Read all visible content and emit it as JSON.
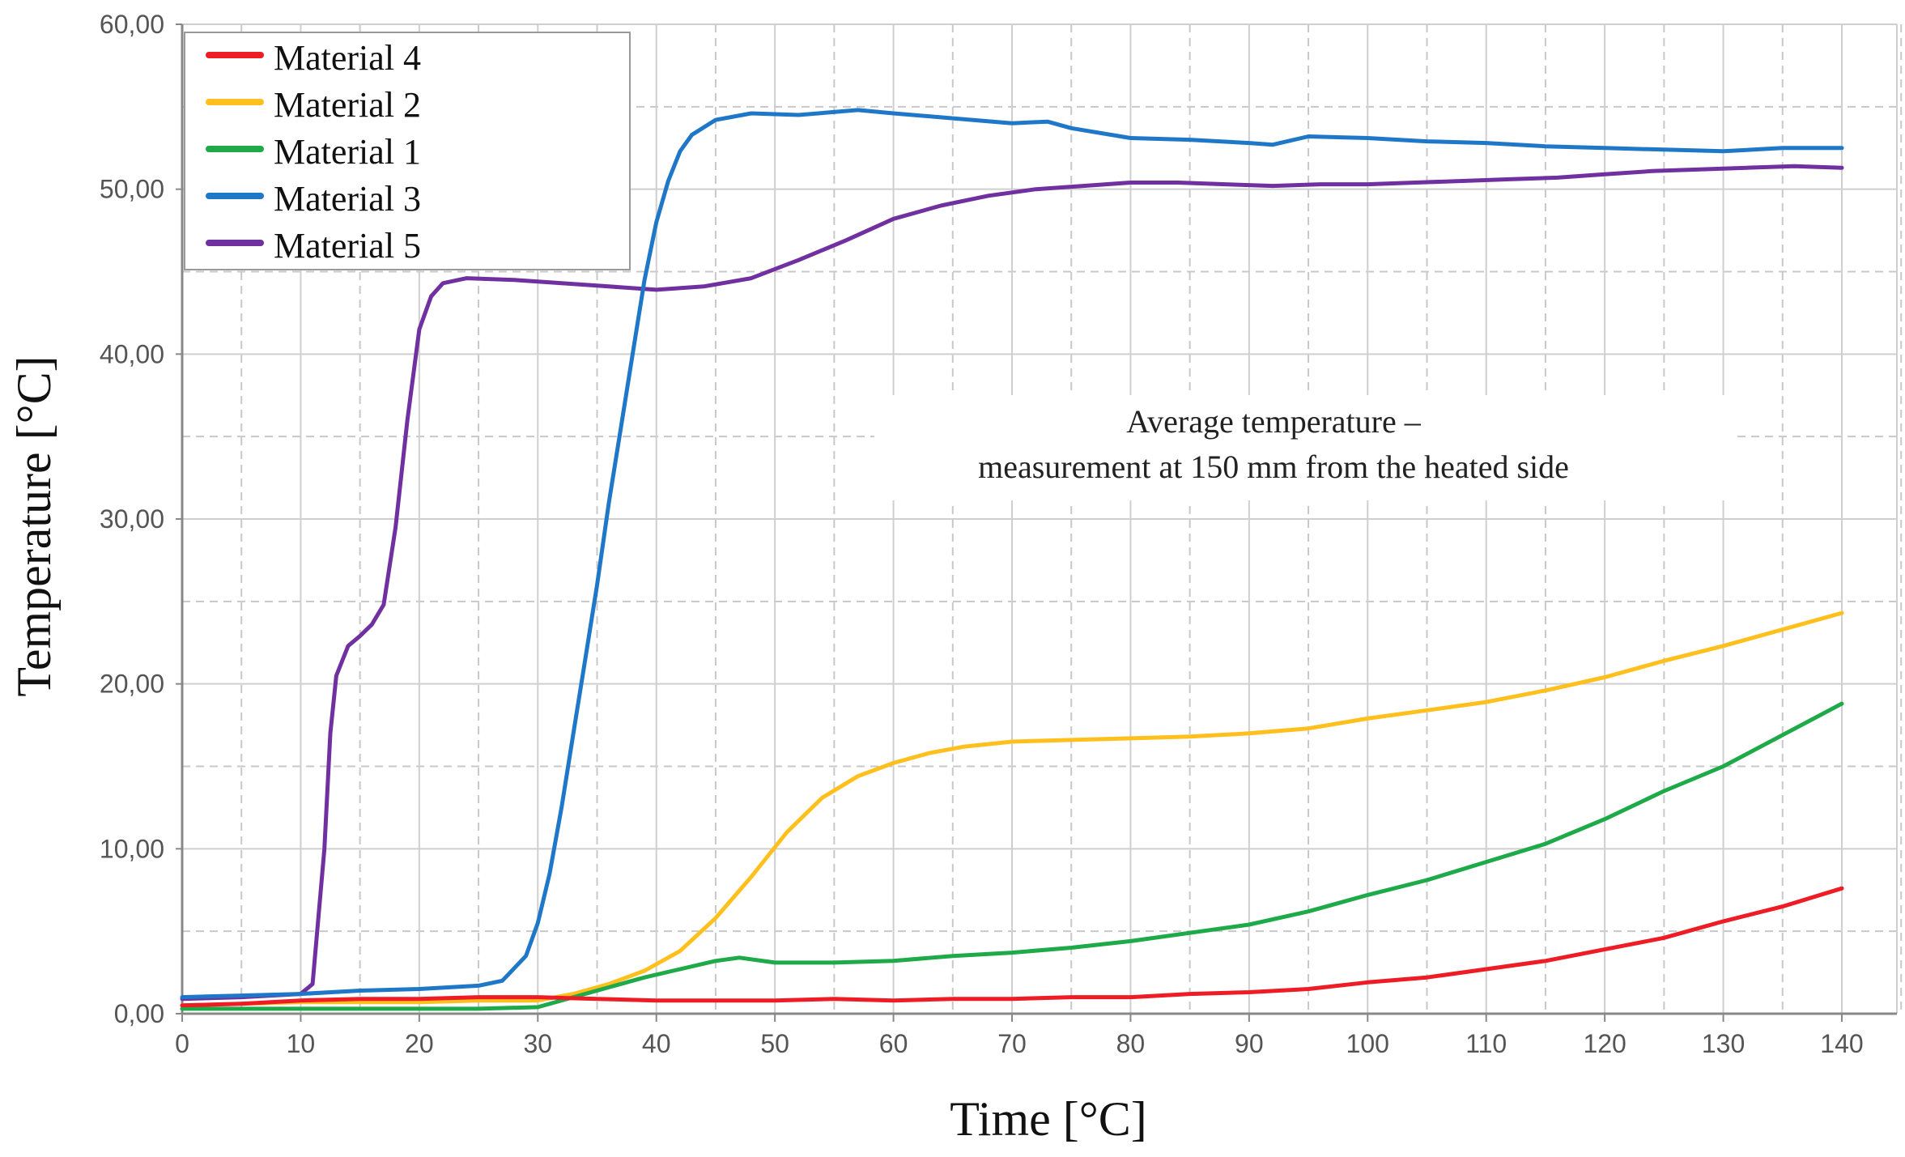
{
  "chart_data": {
    "type": "line",
    "title": "",
    "xlabel": "Time [°C]",
    "ylabel": "Temperature [°C]",
    "xlim": [
      0,
      140
    ],
    "ylim": [
      0,
      60
    ],
    "x_ticks": [
      0,
      10,
      20,
      30,
      40,
      50,
      60,
      70,
      80,
      90,
      100,
      110,
      120,
      130,
      140
    ],
    "x_tick_labels": [
      "0",
      "10",
      "20",
      "30",
      "40",
      "50",
      "60",
      "70",
      "80",
      "90",
      "100",
      "110",
      "120",
      "130",
      "140"
    ],
    "y_ticks": [
      0,
      10,
      20,
      30,
      40,
      50,
      60
    ],
    "y_tick_labels": [
      "0,00",
      "10,00",
      "20,00",
      "30,00",
      "40,00",
      "50,00",
      "60,00"
    ],
    "grid": true,
    "legend_position": "top-left",
    "annotation": [
      "Average temperature –",
      "measurement at 150 mm from the heated side"
    ],
    "series": [
      {
        "name": "Material 4",
        "color": "#ee1c25",
        "x": [
          0,
          5,
          10,
          15,
          20,
          25,
          30,
          35,
          40,
          45,
          50,
          55,
          60,
          65,
          70,
          75,
          80,
          85,
          90,
          95,
          100,
          105,
          110,
          115,
          120,
          125,
          130,
          135,
          140
        ],
        "y": [
          0.5,
          0.6,
          0.8,
          0.9,
          0.9,
          1.0,
          1.0,
          0.9,
          0.8,
          0.8,
          0.8,
          0.9,
          0.8,
          0.9,
          0.9,
          1.0,
          1.0,
          1.2,
          1.3,
          1.5,
          1.9,
          2.2,
          2.7,
          3.2,
          3.9,
          4.6,
          5.6,
          6.5,
          7.6
        ]
      },
      {
        "name": "Material 2",
        "color": "#ffc01e",
        "x": [
          0,
          5,
          10,
          15,
          20,
          25,
          30,
          33,
          36,
          39,
          42,
          45,
          48,
          51,
          54,
          57,
          60,
          63,
          66,
          70,
          75,
          80,
          85,
          90,
          95,
          100,
          105,
          110,
          115,
          120,
          125,
          130,
          135,
          140
        ],
        "y": [
          0.5,
          0.6,
          0.7,
          0.7,
          0.7,
          0.8,
          0.8,
          1.2,
          1.8,
          2.6,
          3.8,
          5.8,
          8.3,
          11.0,
          13.1,
          14.4,
          15.2,
          15.8,
          16.2,
          16.5,
          16.6,
          16.7,
          16.8,
          17.0,
          17.3,
          17.9,
          18.4,
          18.9,
          19.6,
          20.4,
          21.4,
          22.3,
          23.3,
          24.3
        ]
      },
      {
        "name": "Material 1",
        "color": "#1faa4a",
        "x": [
          0,
          5,
          10,
          15,
          20,
          25,
          30,
          33,
          36,
          39,
          42,
          45,
          47,
          50,
          55,
          60,
          65,
          70,
          75,
          80,
          85,
          90,
          95,
          100,
          105,
          110,
          115,
          120,
          125,
          130,
          135,
          140
        ],
        "y": [
          0.3,
          0.3,
          0.3,
          0.3,
          0.3,
          0.3,
          0.4,
          1.0,
          1.6,
          2.2,
          2.7,
          3.2,
          3.4,
          3.1,
          3.1,
          3.2,
          3.5,
          3.7,
          4.0,
          4.4,
          4.9,
          5.4,
          6.2,
          7.2,
          8.1,
          9.2,
          10.3,
          11.8,
          13.5,
          15.0,
          16.9,
          18.8
        ]
      },
      {
        "name": "Material 3",
        "color": "#1f77c8",
        "x": [
          0,
          5,
          10,
          15,
          20,
          25,
          27,
          29,
          30,
          31,
          32,
          33,
          34,
          35,
          36,
          37,
          38,
          39,
          40,
          41,
          42,
          43,
          45,
          48,
          52,
          57,
          60,
          65,
          70,
          73,
          75,
          80,
          85,
          90,
          92,
          95,
          100,
          105,
          110,
          115,
          120,
          125,
          130,
          135,
          140
        ],
        "y": [
          1.0,
          1.1,
          1.2,
          1.4,
          1.5,
          1.7,
          2.0,
          3.5,
          5.5,
          8.5,
          12.5,
          17.0,
          21.5,
          26.0,
          31.0,
          35.5,
          40.0,
          44.5,
          48.0,
          50.5,
          52.3,
          53.3,
          54.2,
          54.6,
          54.5,
          54.8,
          54.6,
          54.3,
          54.0,
          54.1,
          53.7,
          53.1,
          53.0,
          52.8,
          52.7,
          53.2,
          53.1,
          52.9,
          52.8,
          52.6,
          52.5,
          52.4,
          52.3,
          52.5,
          52.5
        ]
      },
      {
        "name": "Material 5",
        "color": "#7030a0",
        "x": [
          0,
          5,
          10,
          11,
          12,
          12.5,
          13,
          14,
          15,
          16,
          17,
          18,
          19,
          20,
          21,
          22,
          24,
          28,
          32,
          36,
          40,
          44,
          48,
          52,
          56,
          60,
          64,
          68,
          72,
          76,
          80,
          84,
          88,
          92,
          96,
          100,
          104,
          108,
          112,
          116,
          120,
          124,
          128,
          132,
          136,
          140
        ],
        "y": [
          0.9,
          1.0,
          1.2,
          1.8,
          10.0,
          17.0,
          20.5,
          22.3,
          22.9,
          23.6,
          24.8,
          29.5,
          36.0,
          41.5,
          43.5,
          44.3,
          44.6,
          44.5,
          44.3,
          44.1,
          43.9,
          44.1,
          44.6,
          45.7,
          46.9,
          48.2,
          49.0,
          49.6,
          50.0,
          50.2,
          50.4,
          50.4,
          50.3,
          50.2,
          50.3,
          50.3,
          50.4,
          50.5,
          50.6,
          50.7,
          50.9,
          51.1,
          51.2,
          51.3,
          51.4,
          51.3
        ]
      }
    ]
  }
}
